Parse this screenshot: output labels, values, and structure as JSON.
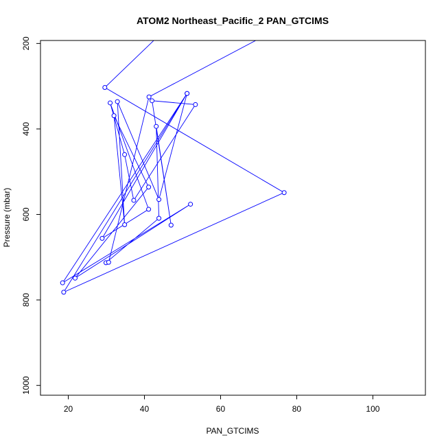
{
  "chart_data": {
    "type": "line",
    "title": "ATOM2 Northeast_Pacific_2 PAN_GTCIMS",
    "xlabel": "PAN_GTCIMS",
    "ylabel": "Pressure (mbar)",
    "xlim": [
      12.7,
      113.8
    ],
    "ylim": [
      1023,
      193
    ],
    "y_reversed": true,
    "grid": false,
    "x_ticks": [
      20,
      40,
      60,
      80,
      100
    ],
    "y_ticks": [
      200,
      400,
      600,
      800,
      1000
    ],
    "series": [
      {
        "color": "#0000ff",
        "marker": "open-circle",
        "points": [
          {
            "x": 49.8,
            "y": 130
          },
          {
            "x": 29.6,
            "y": 303
          },
          {
            "x": 76.7,
            "y": 549
          },
          {
            "x": 18.8,
            "y": 782
          },
          {
            "x": 51.2,
            "y": 317
          },
          {
            "x": 18.5,
            "y": 760
          },
          {
            "x": 52.1,
            "y": 576
          },
          {
            "x": 21.8,
            "y": 749
          },
          {
            "x": 41.1,
            "y": 536
          },
          {
            "x": 32.0,
            "y": 369
          },
          {
            "x": 34.8,
            "y": 624
          },
          {
            "x": 32.9,
            "y": 336
          },
          {
            "x": 43.8,
            "y": 565
          },
          {
            "x": 51.2,
            "y": 317
          },
          {
            "x": 28.9,
            "y": 656
          },
          {
            "x": 41.1,
            "y": 588
          },
          {
            "x": 31.0,
            "y": 339
          },
          {
            "x": 34.8,
            "y": 460
          },
          {
            "x": 37.2,
            "y": 567
          },
          {
            "x": 53.4,
            "y": 343
          },
          {
            "x": 42.0,
            "y": 334
          },
          {
            "x": 47.0,
            "y": 625
          },
          {
            "x": 43.1,
            "y": 394
          },
          {
            "x": 43.8,
            "y": 609
          },
          {
            "x": 29.9,
            "y": 713
          },
          {
            "x": 30.6,
            "y": 712
          },
          {
            "x": 41.2,
            "y": 325
          },
          {
            "x": 80.5,
            "y": 140
          }
        ]
      }
    ]
  }
}
